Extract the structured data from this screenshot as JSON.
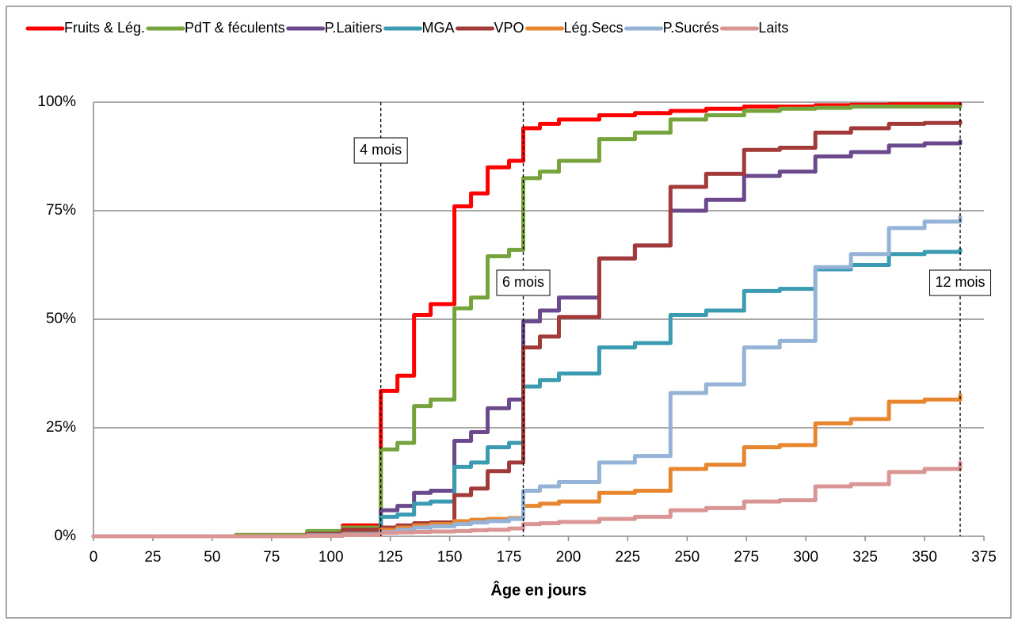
{
  "chart_data": {
    "type": "step-line",
    "x_label": "Âge en jours",
    "x": [
      0,
      60,
      90,
      105,
      121,
      128,
      135,
      142,
      152,
      159,
      166,
      175,
      181,
      188,
      196,
      213,
      228,
      243,
      258,
      274,
      289,
      304,
      319,
      335,
      350,
      365
    ],
    "series": [
      {
        "name": "Fruits & Lég.",
        "color": "#ff0000",
        "values": [
          0,
          0.3,
          1,
          2.5,
          33.5,
          37,
          51,
          53.5,
          76,
          79,
          85,
          86.5,
          94,
          95,
          96,
          97,
          97.5,
          98,
          98.5,
          99,
          99,
          99.3,
          99.4,
          99.5,
          99.5,
          99.5
        ]
      },
      {
        "name": "PdT & féculents",
        "color": "#77a33c",
        "values": [
          0,
          0.3,
          1.2,
          2,
          20,
          21.5,
          30,
          31.5,
          52.5,
          55,
          64.5,
          66,
          82.5,
          84,
          86.5,
          91.5,
          93,
          96,
          97,
          98,
          98.5,
          98.7,
          99,
          99,
          99,
          99
        ]
      },
      {
        "name": "P.Laitiers",
        "color": "#6a4a8c",
        "values": [
          0,
          0,
          0.5,
          1,
          6,
          7,
          10,
          10.5,
          22,
          24,
          29.5,
          31.5,
          49.5,
          52,
          55,
          64,
          67,
          75,
          77.5,
          83,
          84,
          87.5,
          88.5,
          90,
          90.5,
          91
        ]
      },
      {
        "name": "MGA",
        "color": "#3b9bb0",
        "values": [
          0,
          0,
          0.3,
          1,
          4.5,
          5,
          7.5,
          8,
          16,
          17,
          20.5,
          21.5,
          34.5,
          36,
          37.5,
          43.5,
          44.5,
          51,
          52,
          56.5,
          57,
          61.5,
          62.5,
          65,
          65.5,
          66
        ]
      },
      {
        "name": "VPO",
        "color": "#a33a3a",
        "values": [
          0,
          0,
          0.5,
          1.5,
          2,
          2.5,
          3,
          3.2,
          9.5,
          11,
          15,
          17,
          43.5,
          46,
          50.5,
          64,
          67,
          80.5,
          83.5,
          89,
          89.5,
          93,
          94,
          95,
          95.2,
          95.5
        ]
      },
      {
        "name": "Lég.Secs",
        "color": "#e8862f",
        "values": [
          0,
          0,
          0.2,
          0.5,
          1.5,
          2,
          2.5,
          2.8,
          3.5,
          3.8,
          4,
          4.2,
          7,
          7.5,
          8,
          10,
          10.5,
          15.5,
          16.5,
          20.5,
          21,
          26,
          27,
          31,
          31.5,
          32.5
        ]
      },
      {
        "name": "P.Sucrés",
        "color": "#95b3d7",
        "values": [
          0,
          0,
          0.2,
          0.4,
          1,
          1.5,
          2,
          2.3,
          2.8,
          3.2,
          3.5,
          4,
          10.5,
          11.5,
          12.5,
          17,
          18.5,
          33,
          35,
          43.5,
          45,
          62,
          65,
          71,
          72.5,
          73.5
        ]
      },
      {
        "name": "Laits",
        "color": "#d99694",
        "values": [
          0,
          0,
          0.1,
          0.3,
          0.8,
          0.9,
          1,
          1.1,
          1.2,
          1.4,
          1.5,
          1.8,
          2.8,
          3,
          3.3,
          4,
          4.5,
          6,
          6.5,
          8,
          8.3,
          11.5,
          12,
          14.8,
          15.5,
          17
        ]
      }
    ],
    "xlim": [
      0,
      375
    ],
    "xticks": [
      0,
      25,
      50,
      75,
      100,
      125,
      150,
      175,
      200,
      225,
      250,
      275,
      300,
      325,
      350,
      375
    ],
    "ylim": [
      0,
      100
    ],
    "yticks": [
      {
        "value": 0,
        "label": "0%"
      },
      {
        "value": 25,
        "label": "25%"
      },
      {
        "value": 50,
        "label": "50%"
      },
      {
        "value": 75,
        "label": "75%"
      },
      {
        "value": 100,
        "label": "100%"
      }
    ],
    "grid": true,
    "legend": "top",
    "annotations": [
      {
        "text": "4 mois",
        "x": 121
      },
      {
        "text": "6 mois",
        "x": 181
      },
      {
        "text": "12 mois",
        "x": 365
      }
    ]
  }
}
